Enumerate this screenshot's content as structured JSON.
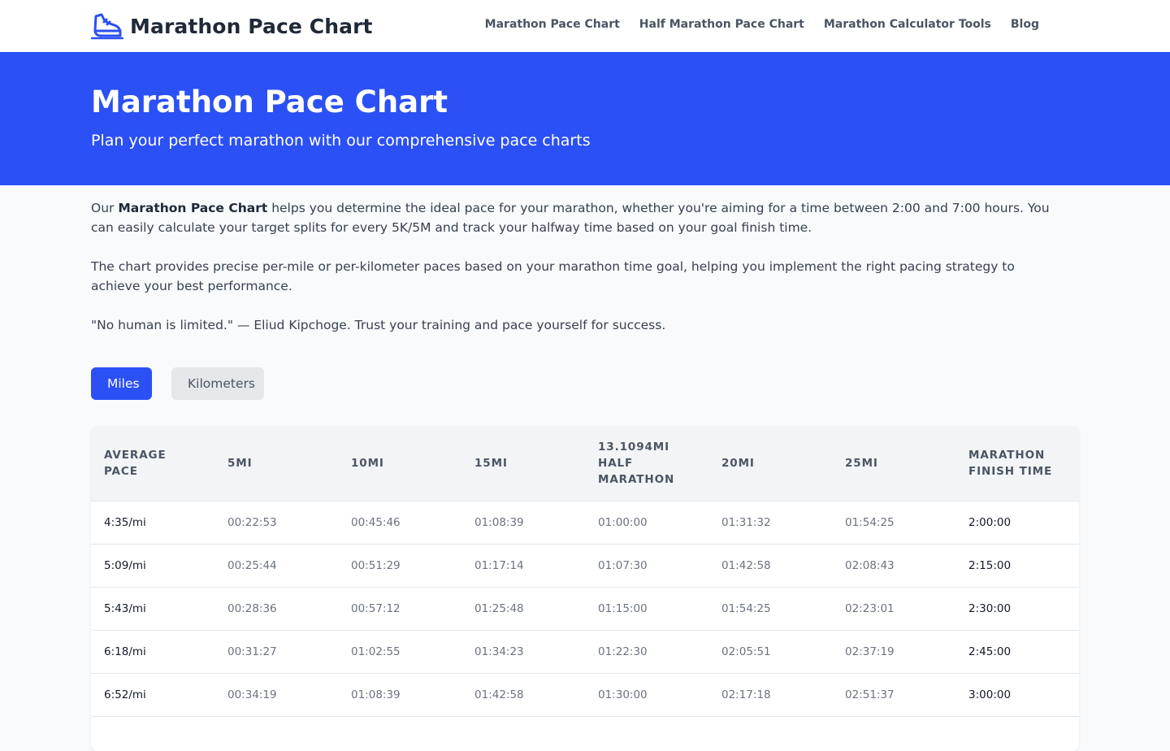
{
  "header": {
    "brand": "Marathon Pace Chart",
    "nav": [
      "Marathon Pace Chart",
      "Half Marathon Pace Chart",
      "Marathon Calculator Tools",
      "Blog"
    ]
  },
  "hero": {
    "title": "Marathon Pace Chart",
    "subtitle": "Plan your perfect marathon with our comprehensive pace charts"
  },
  "intro": {
    "p1_prefix": "Our ",
    "p1_bold": "Marathon Pace Chart",
    "p1_rest": " helps you determine the ideal pace for your marathon, whether you're aiming for a time between 2:00 and 7:00 hours. You can easily calculate your target splits for every 5K/5M and track your halfway time based on your goal finish time.",
    "p2": "The chart provides precise per-mile or per-kilometer paces based on your marathon time goal, helping you implement the right pacing strategy to achieve your best performance.",
    "p3": "\"No human is limited.\" — Eliud Kipchoge. Trust your training and pace yourself for success."
  },
  "unit_toggle": {
    "miles": "Miles",
    "kilometers": "Kilometers",
    "selected": "Miles"
  },
  "table": {
    "headers": [
      "Average Pace",
      "5mi",
      "10mi",
      "15mi",
      "13.1094mi Half Marathon",
      "20mi",
      "25mi",
      "Marathon Finish Time"
    ],
    "rows": [
      [
        "4:35/mi",
        "00:22:53",
        "00:45:46",
        "01:08:39",
        "01:00:00",
        "01:31:32",
        "01:54:25",
        "2:00:00"
      ],
      [
        "5:09/mi",
        "00:25:44",
        "00:51:29",
        "01:17:14",
        "01:07:30",
        "01:42:58",
        "02:08:43",
        "2:15:00"
      ],
      [
        "5:43/mi",
        "00:28:36",
        "00:57:12",
        "01:25:48",
        "01:15:00",
        "01:54:25",
        "02:23:01",
        "2:30:00"
      ],
      [
        "6:18/mi",
        "00:31:27",
        "01:02:55",
        "01:34:23",
        "01:22:30",
        "02:05:51",
        "02:37:19",
        "2:45:00"
      ],
      [
        "6:52/mi",
        "00:34:19",
        "01:08:39",
        "01:42:58",
        "01:30:00",
        "02:17:18",
        "02:51:37",
        "3:00:00"
      ]
    ]
  },
  "colors": {
    "accent": "#2b50f5",
    "header_bg": "#f3f4f6",
    "page_bg": "#f8fafc"
  },
  "icons": {
    "logo": "running-shoe-icon"
  }
}
